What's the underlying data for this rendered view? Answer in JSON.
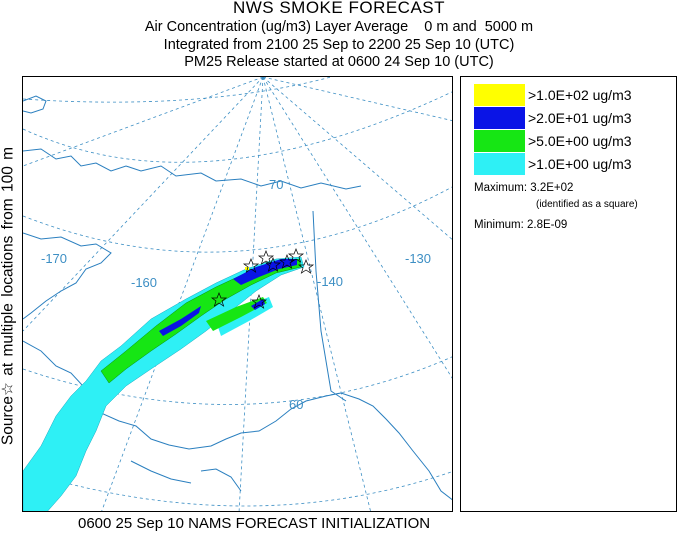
{
  "header": {
    "title": "NWS SMOKE FORECAST",
    "line2": "Air Concentration (ug/m3) Layer Average    0 m and  5000 m",
    "line3": "Integrated from 2100 25 Sep to 2200 25 Sep 10 (UTC)",
    "line4": "PM25 Release started at 0600 24 Sep 10 (UTC)"
  },
  "side_label": "Source☆ at multiple locations from 100 m",
  "map": {
    "lon_labels": [
      "-170",
      "-160",
      "-140",
      "-130"
    ],
    "lat_labels": [
      "70",
      "60"
    ],
    "colors": {
      "level1": "#ffff00",
      "level2": "#0a14e6",
      "level3": "#16e614",
      "level4": "#2ef0f5",
      "graticule": "#3d8fc4",
      "coast": "#2a7fbf"
    }
  },
  "legend": {
    "items": [
      {
        "label": ">1.0E+02 ug/m3",
        "color": "#ffff00"
      },
      {
        "label": ">2.0E+01 ug/m3",
        "color": "#0a14e6"
      },
      {
        "label": ">5.0E+00 ug/m3",
        "color": "#16e614"
      },
      {
        "label": ">1.0E+00 ug/m3",
        "color": "#2ef0f5"
      }
    ],
    "maximum": "Maximum: 3.2E+02",
    "maximum_note": "(identified as a square)",
    "minimum": "Minimum: 2.8E-09"
  },
  "footer": "0600 25 Sep 10 NAMS FORECAST INITIALIZATION"
}
